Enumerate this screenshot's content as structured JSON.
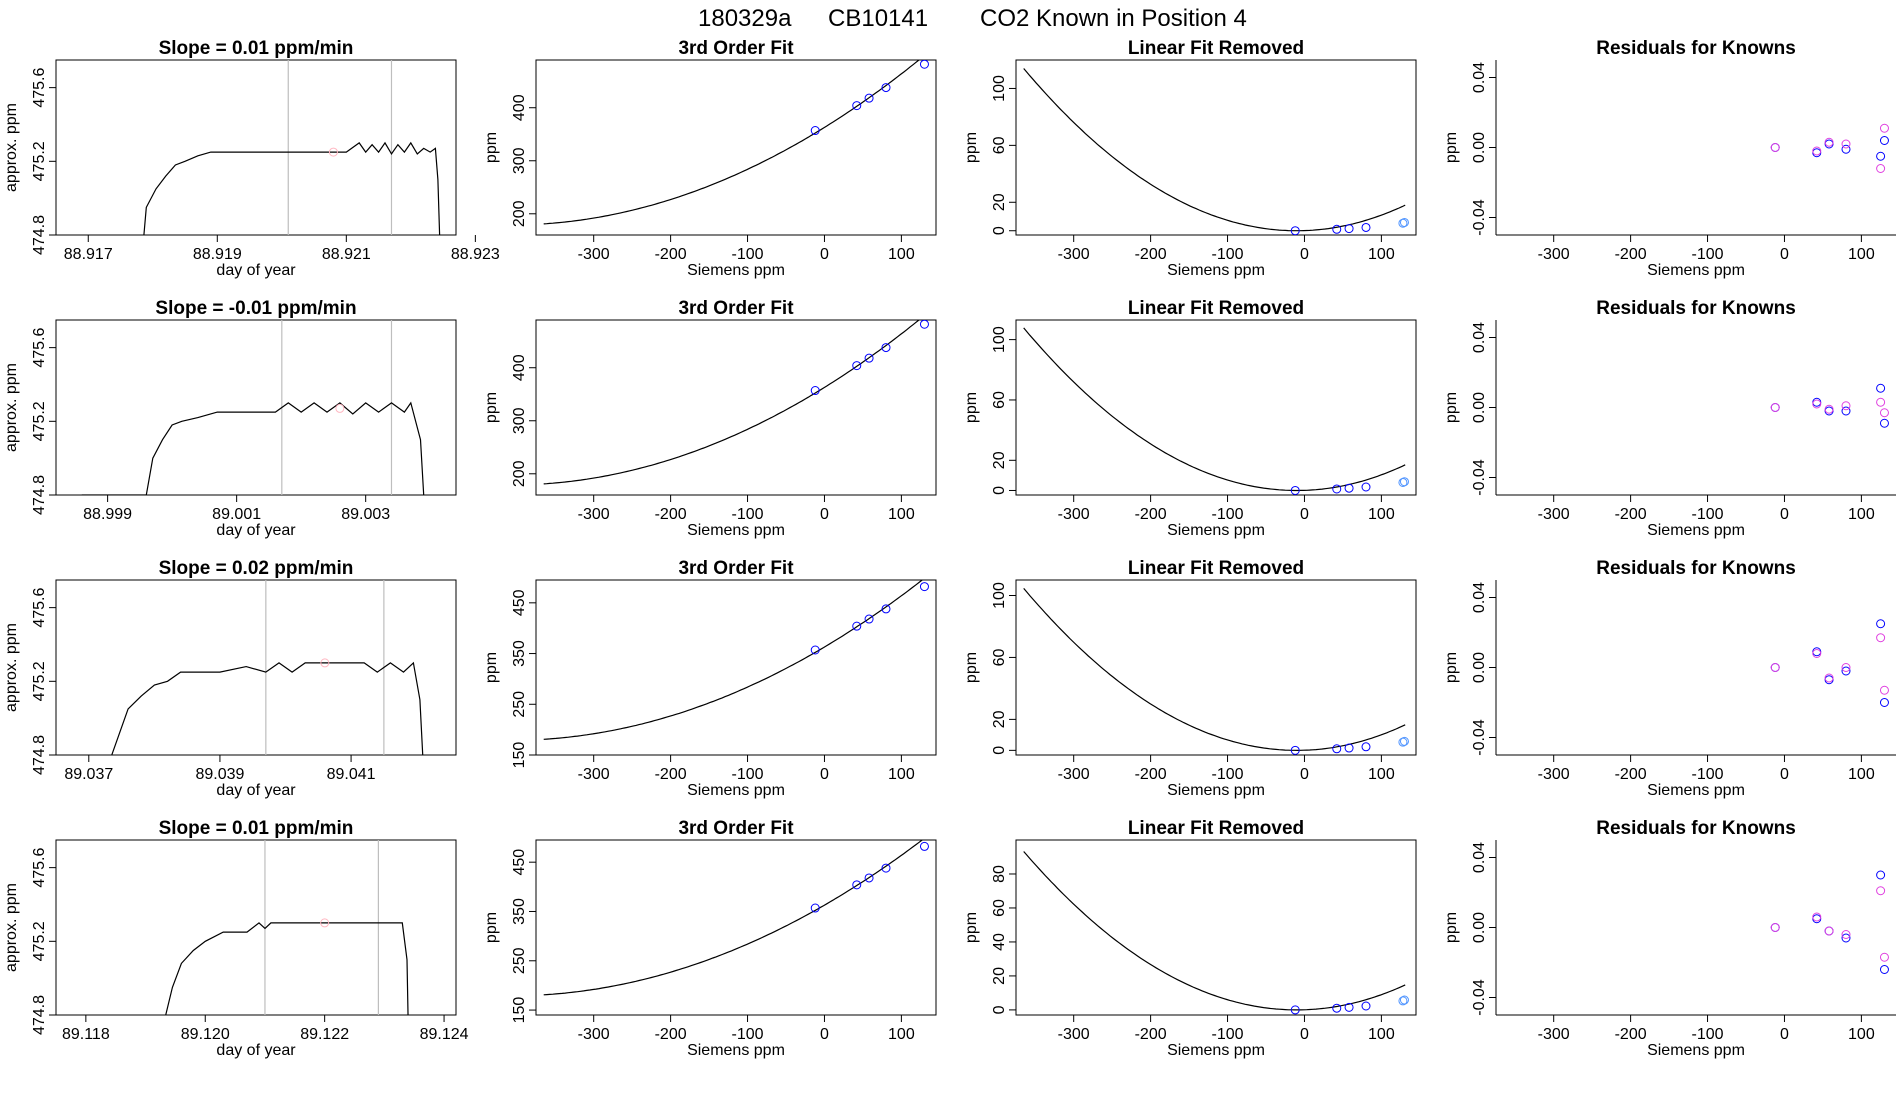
{
  "figure": {
    "title_parts": [
      "180329a",
      "CB10141",
      "CO2 Known in Position  4"
    ]
  },
  "colors": {
    "line": "#000000",
    "frame": "#000000",
    "vline": "#bebebe",
    "point_blue": "#0000ff",
    "point_magenta": "#e040e0",
    "point_pink": "#ffb6c1",
    "point_lightblue": "#4f94ff"
  },
  "chart_data": [
    {
      "type": "line",
      "row": 0,
      "col": 0,
      "title": "Slope =  0.01  ppm/min",
      "xlabel": "day of year",
      "ylabel": "approx. ppm",
      "xlim": [
        88.9165,
        88.9227
      ],
      "ylim": [
        474.8,
        475.75
      ],
      "xticks": [
        88.917,
        88.919,
        88.921,
        88.923
      ],
      "xtick_labels": [
        "88.917",
        "88.919",
        "88.921",
        "88.923"
      ],
      "yticks": [
        474.8,
        475.2,
        475.6
      ],
      "ytick_labels": [
        "474.8",
        "475.2",
        "475.6"
      ],
      "vlines": [
        88.9201,
        88.9217
      ],
      "marker": [
        88.9208,
        475.25
      ],
      "x": [
        88.91785,
        88.9179,
        88.91805,
        88.9182,
        88.91835,
        88.9185,
        88.9187,
        88.9189,
        88.9191,
        88.9196,
        88.92,
        88.9204,
        88.9206,
        88.921,
        88.9212,
        88.9213,
        88.9214,
        88.9215,
        88.9216,
        88.9217,
        88.9218,
        88.9219,
        88.922,
        88.9221,
        88.9222,
        88.9223,
        88.92238,
        88.92242,
        88.92245
      ],
      "y": [
        474.75,
        474.95,
        475.05,
        475.12,
        475.18,
        475.2,
        475.23,
        475.25,
        475.25,
        475.25,
        475.25,
        475.25,
        475.25,
        475.25,
        475.3,
        475.25,
        475.29,
        475.25,
        475.3,
        475.24,
        475.29,
        475.25,
        475.3,
        475.24,
        475.27,
        475.25,
        475.27,
        475.1,
        474.75
      ]
    },
    {
      "type": "line",
      "row": 1,
      "col": 0,
      "title": "Slope =  -0.01  ppm/min",
      "xlabel": "day of year",
      "ylabel": "approx. ppm",
      "xlim": [
        88.9982,
        89.0044
      ],
      "ylim": [
        474.8,
        475.75
      ],
      "xticks": [
        88.999,
        89.001,
        89.003
      ],
      "xtick_labels": [
        "88.999",
        "89.001",
        "89.003"
      ],
      "yticks": [
        474.8,
        475.2,
        475.6
      ],
      "ytick_labels": [
        "474.8",
        "475.2",
        "475.6"
      ],
      "vlines": [
        89.0017,
        89.0034
      ],
      "marker": [
        89.0026,
        475.27
      ],
      "x": [
        88.9986,
        88.9996,
        88.9997,
        88.99985,
        89.0,
        89.00015,
        89.0004,
        89.0007,
        89.0012,
        89.0016,
        89.0018,
        89.002,
        89.0022,
        89.0024,
        89.0026,
        89.0028,
        89.003,
        89.0032,
        89.0034,
        89.0036,
        89.0037,
        89.00385,
        89.0039
      ],
      "y": [
        474.8,
        474.8,
        475.0,
        475.1,
        475.18,
        475.2,
        475.22,
        475.25,
        475.25,
        475.25,
        475.3,
        475.25,
        475.3,
        475.25,
        475.3,
        475.24,
        475.3,
        475.25,
        475.3,
        475.25,
        475.3,
        475.1,
        474.8
      ]
    },
    {
      "type": "line",
      "row": 2,
      "col": 0,
      "title": "Slope =  0.02  ppm/min",
      "xlabel": "day of year",
      "ylabel": "approx. ppm",
      "xlim": [
        89.0365,
        89.0426
      ],
      "ylim": [
        474.8,
        475.75
      ],
      "xticks": [
        89.037,
        89.039,
        89.041
      ],
      "xtick_labels": [
        "89.037",
        "89.039",
        "89.041"
      ],
      "yticks": [
        474.8,
        475.2,
        475.6
      ],
      "ytick_labels": [
        "474.8",
        "475.2",
        "475.6"
      ],
      "vlines": [
        89.0397,
        89.0415
      ],
      "marker": [
        89.0406,
        475.3
      ],
      "x": [
        89.0373,
        89.03745,
        89.0376,
        89.0378,
        89.038,
        89.0382,
        89.0384,
        89.0387,
        89.039,
        89.0394,
        89.0397,
        89.0399,
        89.0401,
        89.0403,
        89.0405,
        89.0408,
        89.0412,
        89.0414,
        89.0416,
        89.0418,
        89.04195,
        89.04205,
        89.0421
      ],
      "y": [
        474.75,
        474.9,
        475.05,
        475.12,
        475.18,
        475.2,
        475.25,
        475.25,
        475.25,
        475.28,
        475.25,
        475.3,
        475.25,
        475.3,
        475.3,
        475.3,
        475.3,
        475.25,
        475.3,
        475.25,
        475.3,
        475.1,
        474.75
      ]
    },
    {
      "type": "line",
      "row": 3,
      "col": 0,
      "title": "Slope =  0.01  ppm/min",
      "xlabel": "day of year",
      "ylabel": "approx. ppm",
      "xlim": [
        89.1175,
        89.1242
      ],
      "ylim": [
        474.8,
        475.75
      ],
      "xticks": [
        89.118,
        89.12,
        89.122,
        89.124
      ],
      "xtick_labels": [
        "89.118",
        "89.120",
        "89.122",
        "89.124"
      ],
      "yticks": [
        474.8,
        475.2,
        475.6
      ],
      "ytick_labels": [
        "474.8",
        "475.2",
        "475.6"
      ],
      "vlines": [
        89.121,
        89.1229
      ],
      "marker": [
        89.122,
        475.3
      ],
      "x": [
        89.1193,
        89.11945,
        89.1196,
        89.1198,
        89.12,
        89.1203,
        89.1207,
        89.1209,
        89.121,
        89.1211,
        89.1213,
        89.1217,
        89.1221,
        89.1225,
        89.1229,
        89.1233,
        89.12338,
        89.1234
      ],
      "y": [
        474.75,
        474.95,
        475.08,
        475.15,
        475.2,
        475.25,
        475.25,
        475.3,
        475.27,
        475.3,
        475.3,
        475.3,
        475.3,
        475.3,
        475.3,
        475.3,
        475.1,
        474.75
      ]
    },
    {
      "type": "scatter",
      "row": 0,
      "col": 1,
      "title": "3rd Order Fit",
      "xlabel": "Siemens ppm",
      "ylabel": "ppm",
      "xlim": [
        -375,
        145
      ],
      "ylim": [
        160,
        490
      ],
      "xticks": [
        -300,
        -200,
        -100,
        0,
        100
      ],
      "xtick_labels": [
        "-300",
        "-200",
        "-100",
        "0",
        "100"
      ],
      "yticks": [
        200,
        300,
        400
      ],
      "ytick_labels": [
        "200",
        "300",
        "400"
      ],
      "curve": {
        "a": 362.9,
        "b": 0.9,
        "c": 0.0011,
        "xmin": -365,
        "xmax": 132
      },
      "points_x": [
        -12,
        42,
        58,
        80,
        130
      ],
      "points_y": [
        357,
        404,
        418,
        438,
        482
      ]
    },
    {
      "type": "scatter",
      "row": 1,
      "col": 1,
      "title": "3rd Order Fit",
      "xlabel": "Siemens ppm",
      "ylabel": "ppm",
      "xlim": [
        -375,
        145
      ],
      "ylim": [
        160,
        490
      ],
      "xticks": [
        -300,
        -200,
        -100,
        0,
        100
      ],
      "xtick_labels": [
        "-300",
        "-200",
        "-100",
        "0",
        "100"
      ],
      "yticks": [
        200,
        300,
        400
      ],
      "ytick_labels": [
        "200",
        "300",
        "400"
      ],
      "curve": {
        "a": 362.9,
        "b": 0.9,
        "c": 0.0011,
        "xmin": -365,
        "xmax": 132
      },
      "points_x": [
        -12,
        42,
        58,
        80,
        130
      ],
      "points_y": [
        357,
        404,
        418,
        438,
        482
      ]
    },
    {
      "type": "scatter",
      "row": 2,
      "col": 1,
      "title": "3rd Order Fit",
      "xlabel": "Siemens ppm",
      "ylabel": "ppm",
      "xlim": [
        -375,
        145
      ],
      "ylim": [
        150,
        495
      ],
      "xticks": [
        -300,
        -200,
        -100,
        0,
        100
      ],
      "xtick_labels": [
        "-300",
        "-200",
        "-100",
        "0",
        "100"
      ],
      "yticks": [
        150,
        250,
        350,
        450
      ],
      "ytick_labels": [
        "150",
        "250",
        "350",
        "450"
      ],
      "curve": {
        "a": 362.9,
        "b": 0.9,
        "c": 0.0011,
        "xmin": -365,
        "xmax": 132
      },
      "points_x": [
        -12,
        42,
        58,
        80,
        130
      ],
      "points_y": [
        357,
        404,
        418,
        438,
        482
      ]
    },
    {
      "type": "scatter",
      "row": 3,
      "col": 1,
      "title": "3rd Order Fit",
      "xlabel": "Siemens ppm",
      "ylabel": "ppm",
      "xlim": [
        -375,
        145
      ],
      "ylim": [
        140,
        495
      ],
      "xticks": [
        -300,
        -200,
        -100,
        0,
        100
      ],
      "xtick_labels": [
        "-300",
        "-200",
        "-100",
        "0",
        "100"
      ],
      "yticks": [
        150,
        250,
        350,
        450
      ],
      "ytick_labels": [
        "150",
        "250",
        "350",
        "450"
      ],
      "curve": {
        "a": 362.9,
        "b": 0.9,
        "c": 0.0011,
        "xmin": -365,
        "xmax": 132
      },
      "points_x": [
        -12,
        42,
        58,
        80,
        130
      ],
      "points_y": [
        357,
        404,
        418,
        438,
        482
      ]
    },
    {
      "type": "scatter",
      "row": 0,
      "col": 2,
      "title": "Linear Fit Removed",
      "xlabel": "Siemens ppm",
      "ylabel": "ppm",
      "xlim": [
        -375,
        145
      ],
      "ylim": [
        -3,
        120
      ],
      "xticks": [
        -300,
        -200,
        -100,
        0,
        100
      ],
      "xtick_labels": [
        "-300",
        "-200",
        "-100",
        "0",
        "100"
      ],
      "yticks": [
        0,
        20,
        60,
        100
      ],
      "ytick_labels": [
        "0",
        "20",
        "60",
        "100"
      ],
      "curve": {
        "c": 0.000905,
        "x0": -10,
        "xmin": -365,
        "xmax": 132
      },
      "points_x": [
        -12,
        42,
        58,
        80,
        128,
        130
      ],
      "points_y": [
        0,
        1,
        1.5,
        2.3,
        5.3,
        5.8
      ]
    },
    {
      "type": "scatter",
      "row": 1,
      "col": 2,
      "title": "Linear Fit Removed",
      "xlabel": "Siemens ppm",
      "ylabel": "ppm",
      "xlim": [
        -375,
        145
      ],
      "ylim": [
        -3,
        113
      ],
      "xticks": [
        -300,
        -200,
        -100,
        0,
        100
      ],
      "xtick_labels": [
        "-300",
        "-200",
        "-100",
        "0",
        "100"
      ],
      "yticks": [
        0,
        20,
        60,
        100
      ],
      "ytick_labels": [
        "0",
        "20",
        "60",
        "100"
      ],
      "curve": {
        "c": 0.000855,
        "x0": -10,
        "xmin": -365,
        "xmax": 132
      },
      "points_x": [
        -12,
        42,
        58,
        80,
        128,
        130
      ],
      "points_y": [
        0,
        1,
        1.5,
        2.3,
        5.3,
        5.8
      ]
    },
    {
      "type": "scatter",
      "row": 2,
      "col": 2,
      "title": "Linear Fit Removed",
      "xlabel": "Siemens ppm",
      "ylabel": "ppm",
      "xlim": [
        -375,
        145
      ],
      "ylim": [
        -3,
        110
      ],
      "xticks": [
        -300,
        -200,
        -100,
        0,
        100
      ],
      "xtick_labels": [
        "-300",
        "-200",
        "-100",
        "0",
        "100"
      ],
      "yticks": [
        0,
        20,
        60,
        100
      ],
      "ytick_labels": [
        "0",
        "20",
        "60",
        "100"
      ],
      "curve": {
        "c": 0.00083,
        "x0": -10,
        "xmin": -365,
        "xmax": 132
      },
      "points_x": [
        -12,
        42,
        58,
        80,
        128,
        130
      ],
      "points_y": [
        0,
        1,
        1.5,
        2.3,
        5.3,
        5.8
      ]
    },
    {
      "type": "scatter",
      "row": 3,
      "col": 2,
      "title": "Linear Fit Removed",
      "xlabel": "Siemens ppm",
      "ylabel": "ppm",
      "xlim": [
        -375,
        145
      ],
      "ylim": [
        -3,
        100
      ],
      "xticks": [
        -300,
        -200,
        -100,
        0,
        100
      ],
      "xtick_labels": [
        "-300",
        "-200",
        "-100",
        "0",
        "100"
      ],
      "yticks": [
        0,
        20,
        40,
        60,
        80
      ],
      "ytick_labels": [
        "0",
        "20",
        "40",
        "60",
        "80"
      ],
      "curve": {
        "c": 0.00074,
        "x0": -10,
        "xmin": -365,
        "xmax": 132
      },
      "points_x": [
        -12,
        42,
        58,
        80,
        128,
        130
      ],
      "points_y": [
        0,
        1,
        1.5,
        2.3,
        5.3,
        5.8
      ]
    },
    {
      "type": "scatter",
      "row": 0,
      "col": 3,
      "title": "Residuals for Knowns",
      "xlabel": "Siemens ppm",
      "ylabel": "ppm",
      "xlim": [
        -375,
        145
      ],
      "ylim": [
        -0.05,
        0.05
      ],
      "xticks": [
        -300,
        -200,
        -100,
        0,
        100
      ],
      "xtick_labels": [
        "-300",
        "-200",
        "-100",
        "0",
        "100"
      ],
      "yticks": [
        -0.04,
        0.0,
        0.04
      ],
      "ytick_labels": [
        "-0.04",
        "0.00",
        "0.04"
      ],
      "series": [
        {
          "color": "point_blue",
          "x": [
            -12,
            42,
            58,
            80,
            125,
            130
          ],
          "y": [
            0.0,
            -0.003,
            0.002,
            -0.001,
            -0.005,
            0.004
          ]
        },
        {
          "color": "point_magenta",
          "x": [
            -12,
            42,
            58,
            80,
            125,
            130
          ],
          "y": [
            0.0,
            -0.002,
            0.003,
            0.002,
            -0.012,
            0.011
          ]
        }
      ]
    },
    {
      "type": "scatter",
      "row": 1,
      "col": 3,
      "title": "Residuals for Knowns",
      "xlabel": "Siemens ppm",
      "ylabel": "ppm",
      "xlim": [
        -375,
        145
      ],
      "ylim": [
        -0.05,
        0.05
      ],
      "xticks": [
        -300,
        -200,
        -100,
        0,
        100
      ],
      "xtick_labels": [
        "-300",
        "-200",
        "-100",
        "0",
        "100"
      ],
      "yticks": [
        -0.04,
        0.0,
        0.04
      ],
      "ytick_labels": [
        "-0.04",
        "0.00",
        "0.04"
      ],
      "series": [
        {
          "color": "point_blue",
          "x": [
            -12,
            42,
            58,
            80,
            125,
            130
          ],
          "y": [
            0.0,
            0.003,
            -0.002,
            -0.002,
            0.011,
            -0.009
          ]
        },
        {
          "color": "point_magenta",
          "x": [
            -12,
            42,
            58,
            80,
            125,
            130
          ],
          "y": [
            0.0,
            0.002,
            -0.001,
            0.001,
            0.003,
            -0.003
          ]
        }
      ]
    },
    {
      "type": "scatter",
      "row": 2,
      "col": 3,
      "title": "Residuals for Knowns",
      "xlabel": "Siemens ppm",
      "ylabel": "ppm",
      "xlim": [
        -375,
        145
      ],
      "ylim": [
        -0.05,
        0.05
      ],
      "xticks": [
        -300,
        -200,
        -100,
        0,
        100
      ],
      "xtick_labels": [
        "-300",
        "-200",
        "-100",
        "0",
        "100"
      ],
      "yticks": [
        -0.04,
        0.0,
        0.04
      ],
      "ytick_labels": [
        "-0.04",
        "0.00",
        "0.04"
      ],
      "series": [
        {
          "color": "point_blue",
          "x": [
            -12,
            42,
            58,
            80,
            125,
            130
          ],
          "y": [
            0.0,
            0.009,
            -0.007,
            -0.002,
            0.025,
            -0.02
          ]
        },
        {
          "color": "point_magenta",
          "x": [
            -12,
            42,
            58,
            80,
            125,
            130
          ],
          "y": [
            0.0,
            0.008,
            -0.006,
            0.0,
            0.017,
            -0.013
          ]
        }
      ]
    },
    {
      "type": "scatter",
      "row": 3,
      "col": 3,
      "title": "Residuals for Knowns",
      "xlabel": "Siemens ppm",
      "ylabel": "ppm",
      "xlim": [
        -375,
        145
      ],
      "ylim": [
        -0.05,
        0.05
      ],
      "xticks": [
        -300,
        -200,
        -100,
        0,
        100
      ],
      "xtick_labels": [
        "-300",
        "-200",
        "-100",
        "0",
        "100"
      ],
      "yticks": [
        -0.04,
        0.0,
        0.04
      ],
      "ytick_labels": [
        "-0.04",
        "0.00",
        "0.04"
      ],
      "series": [
        {
          "color": "point_blue",
          "x": [
            -12,
            42,
            58,
            80,
            125,
            130
          ],
          "y": [
            0.0,
            0.005,
            -0.002,
            -0.006,
            0.03,
            -0.024
          ]
        },
        {
          "color": "point_magenta",
          "x": [
            -12,
            42,
            58,
            80,
            125,
            130
          ],
          "y": [
            0.0,
            0.006,
            -0.002,
            -0.004,
            0.021,
            -0.017
          ]
        }
      ]
    }
  ]
}
